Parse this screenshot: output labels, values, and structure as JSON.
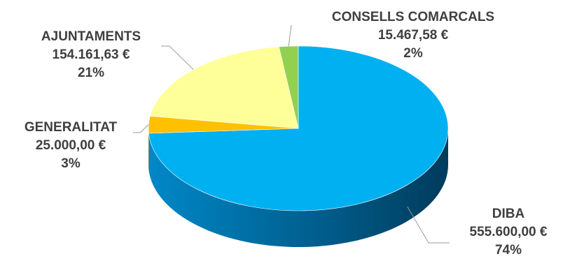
{
  "chart_data": {
    "type": "pie",
    "style": "3d",
    "title": "",
    "slices": [
      {
        "name": "DIBA",
        "amount": "555.600,00 €",
        "percent_label": "74%",
        "value": 555600.0,
        "color": "#00b0f0"
      },
      {
        "name": "GENERALITAT",
        "amount": "25.000,00 €",
        "percent_label": "3%",
        "value": 25000.0,
        "color": "#ffc000"
      },
      {
        "name": "AJUNTAMENTS",
        "amount": "154.161,63 €",
        "percent_label": "21%",
        "value": 154161.63,
        "color": "#ffff99"
      },
      {
        "name": "CONSELLS COMARCALS",
        "amount": "15.467,58 €",
        "percent_label": "2%",
        "value": 15467.58,
        "color": "#92d050"
      }
    ],
    "legend": "none"
  }
}
